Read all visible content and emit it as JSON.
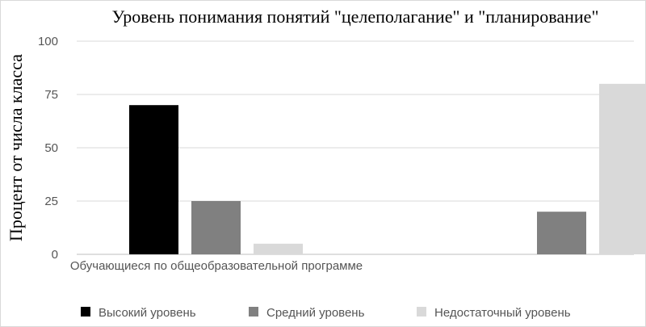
{
  "chart_data": {
    "type": "bar",
    "title": "Уровень понимания понятий \"целеполагание\" и \"планирование\"",
    "xlabel": "",
    "ylabel": "Процент от числа класса",
    "ylim": [
      0,
      100
    ],
    "yticks": [
      0,
      25,
      50,
      75,
      100
    ],
    "grid": true,
    "legend_position": "bottom",
    "categories": [
      "Обучающиеся по общеобразовательной программе",
      ""
    ],
    "series": [
      {
        "name": "Высокий уровень",
        "color": "#000000",
        "values": [
          70,
          0
        ]
      },
      {
        "name": "Средний уровень",
        "color": "#808080",
        "values": [
          25,
          20
        ]
      },
      {
        "name": "Недостаточный уровень",
        "color": "#d9d9d9",
        "values": [
          5,
          80
        ]
      }
    ]
  }
}
